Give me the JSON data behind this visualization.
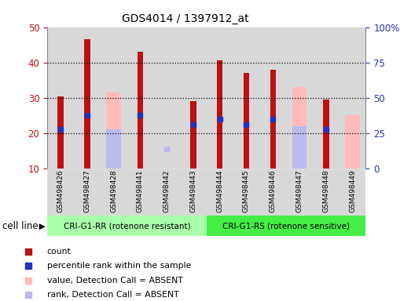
{
  "title": "GDS4014 / 1397912_at",
  "samples": [
    "GSM498426",
    "GSM498427",
    "GSM498428",
    "GSM498441",
    "GSM498442",
    "GSM498443",
    "GSM498444",
    "GSM498445",
    "GSM498446",
    "GSM498447",
    "GSM498448",
    "GSM498449"
  ],
  "groups": [
    "CRI-G1-RR (rotenone resistant)",
    "CRI-G1-RS (rotenone sensitive)"
  ],
  "group_sizes": [
    6,
    6
  ],
  "count_values": [
    30.5,
    46.5,
    null,
    43,
    null,
    29,
    40.5,
    37,
    38,
    null,
    29.5,
    null
  ],
  "rank_values": [
    21,
    25,
    null,
    25,
    null,
    22.5,
    24,
    22.5,
    24,
    null,
    21,
    null
  ],
  "absent_value_bars": [
    null,
    null,
    31.5,
    null,
    null,
    null,
    null,
    null,
    null,
    33,
    null,
    25
  ],
  "absent_rank_bars": [
    null,
    null,
    21,
    null,
    null,
    null,
    null,
    null,
    null,
    22,
    null,
    null
  ],
  "absent_rank_dot": [
    null,
    null,
    null,
    null,
    15.5,
    null,
    null,
    null,
    null,
    null,
    null,
    null
  ],
  "ylim": [
    10,
    50
  ],
  "y2lim": [
    0,
    100
  ],
  "yticks": [
    10,
    20,
    30,
    40,
    50
  ],
  "y2ticks": [
    0,
    25,
    50,
    75,
    100
  ],
  "grid_lines": [
    20,
    30,
    40
  ],
  "color_count": "#bb1111",
  "color_rank": "#2233bb",
  "color_absent_value": "#ffbbbb",
  "color_absent_rank": "#bbbbee",
  "group1_color": "#aaffaa",
  "group2_color": "#44ee44",
  "bar_bg_color": "#d8d8d8",
  "plot_bg_color": "#ffffff"
}
